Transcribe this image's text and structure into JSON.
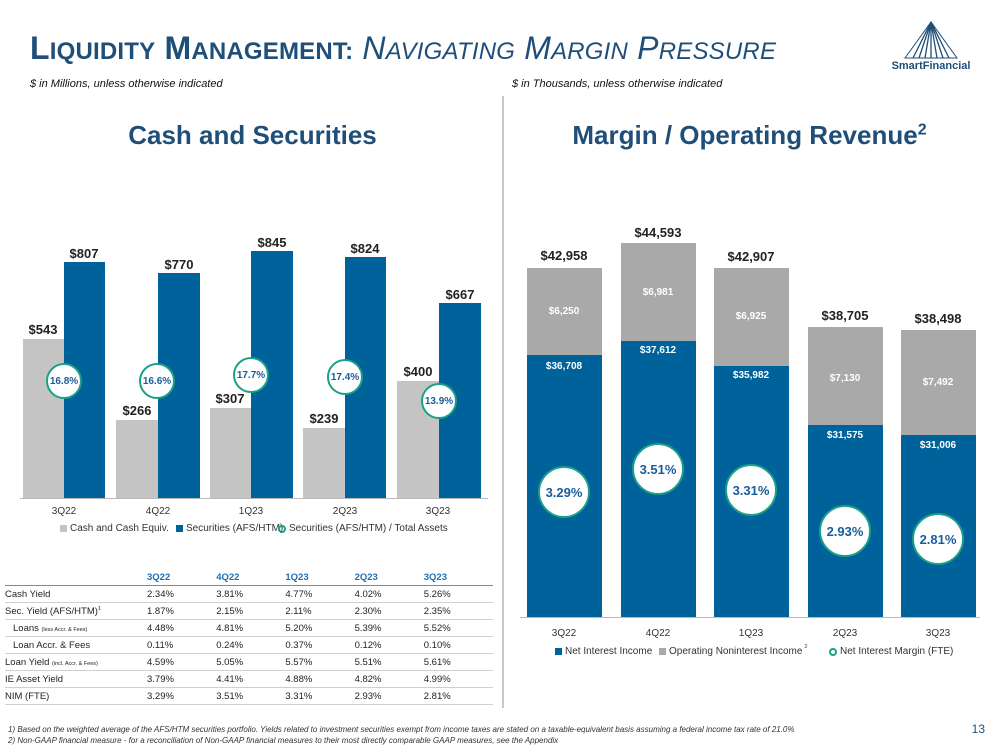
{
  "header": {
    "title_l": "L",
    "title_iquidity": "IQUIDITY",
    "title_m": "M",
    "title_anagement": "ANAGEMENT:",
    "title_n": "N",
    "title_avigating": "AVIGATING",
    "title_m2": "M",
    "title_argin": "ARGIN",
    "title_p": "P",
    "title_ressure": "RESSURE",
    "left_note": "$ in Millions, unless otherwise indicated",
    "right_note": "$ in Thousands, unless otherwise indicated",
    "logo_text": "SmartFinancial"
  },
  "left_panel": {
    "title": "Cash and Securities",
    "labels": [
      "$543",
      "$807",
      "$266",
      "$770",
      "$307",
      "$845",
      "$239",
      "$824",
      "$400",
      "$667"
    ],
    "ratios": [
      "16.8%",
      "16.6%",
      "17.7%",
      "17.4%",
      "13.9%"
    ],
    "legend": [
      "Cash and Cash Equiv.",
      "Securities (AFS/HTM)",
      "Securities (AFS/HTM) / Total Assets"
    ]
  },
  "right_panel": {
    "title": "Margin / Operating Revenue",
    "title_sup": "2",
    "totals": [
      "$42,958",
      "$44,593",
      "$42,907",
      "$38,705",
      "$38,498"
    ],
    "nii_labels": [
      "$36,708",
      "$37,612",
      "$35,982",
      "$31,575",
      "$31,006"
    ],
    "nonint_labels": [
      "$6,250",
      "$6,981",
      "$6,925",
      "$7,130",
      "$7,492"
    ],
    "nim": [
      "3.29%",
      "3.51%",
      "3.31%",
      "2.93%",
      "2.81%"
    ],
    "legend": [
      "Net Interest Income",
      "Operating Noninterest Income",
      "Net Interest Margin (FTE)"
    ],
    "legend_sup": "2"
  },
  "chart_data": [
    {
      "type": "bar",
      "title": "Cash and Securities",
      "categories": [
        "3Q22",
        "4Q22",
        "1Q23",
        "2Q23",
        "3Q23"
      ],
      "series": [
        {
          "name": "Cash and Cash Equiv.",
          "values": [
            543,
            266,
            307,
            239,
            400
          ]
        },
        {
          "name": "Securities (AFS/HTM)",
          "values": [
            807,
            770,
            845,
            824,
            667
          ]
        },
        {
          "name": "Securities (AFS/HTM) / Total Assets",
          "values": [
            16.8,
            16.6,
            17.7,
            17.4,
            13.9
          ]
        }
      ],
      "ylim": [
        0,
        900
      ]
    },
    {
      "type": "bar",
      "title": "Margin / Operating Revenue",
      "stacked": true,
      "categories": [
        "3Q22",
        "4Q22",
        "1Q23",
        "2Q23",
        "3Q23"
      ],
      "series": [
        {
          "name": "Net Interest Income",
          "values": [
            36708,
            37612,
            35982,
            31575,
            31006
          ]
        },
        {
          "name": "Operating Noninterest Income",
          "values": [
            6250,
            6981,
            6925,
            7130,
            7492
          ]
        },
        {
          "name": "Net Interest Margin (FTE)",
          "values": [
            3.29,
            3.51,
            3.31,
            2.93,
            2.81
          ]
        }
      ],
      "totals": [
        42958,
        44593,
        42907,
        38705,
        38498
      ],
      "ylim": [
        0,
        45000
      ]
    }
  ],
  "table": {
    "headers": [
      "3Q22",
      "4Q22",
      "1Q23",
      "2Q23",
      "3Q23"
    ],
    "rows": [
      {
        "label": "Cash Yield",
        "values": [
          "2.34%",
          "3.81%",
          "4.77%",
          "4.02%",
          "5.26%"
        ]
      },
      {
        "label": "Sec. Yield (AFS/HTM)",
        "sup": "1",
        "values": [
          "1.87%",
          "2.15%",
          "2.11%",
          "2.30%",
          "2.35%"
        ]
      },
      {
        "label": "Loans",
        "small": "(less Accr. & Fees)",
        "values": [
          "4.48%",
          "4.81%",
          "5.20%",
          "5.39%",
          "5.52%"
        ]
      },
      {
        "label": "Loan Accr. & Fees",
        "values": [
          "0.11%",
          "0.24%",
          "0.37%",
          "0.12%",
          "0.10%"
        ]
      },
      {
        "label": "Loan Yield",
        "small": "(incl. Accr. & Fees)",
        "values": [
          "4.59%",
          "5.05%",
          "5.57%",
          "5.51%",
          "5.61%"
        ]
      },
      {
        "label": "IE Asset Yield",
        "values": [
          "3.79%",
          "4.41%",
          "4.88%",
          "4.82%",
          "4.99%"
        ]
      },
      {
        "label": "NIM (FTE)",
        "values": [
          "3.29%",
          "3.51%",
          "3.31%",
          "2.93%",
          "2.81%"
        ]
      }
    ]
  },
  "footnotes": [
    "1) Based on the weighted average of the AFS/HTM securities portfolio. Yields related to investment securities exempt from income taxes are stated on a taxable-equivalent basis assuming a federal income tax rate of 21.0%",
    "2) Non-GAAP financial measure - for a reconciliation of Non-GAAP financial measures to their most directly comparable GAAP measures, see the Appendix"
  ],
  "page_number": "13",
  "colors": {
    "brand": "#1f4e79",
    "bar_blue": "#00629b",
    "bar_gray": "#c4c4c4",
    "bar_dark_gray": "#a9a9a9",
    "ring": "#1aa087"
  }
}
